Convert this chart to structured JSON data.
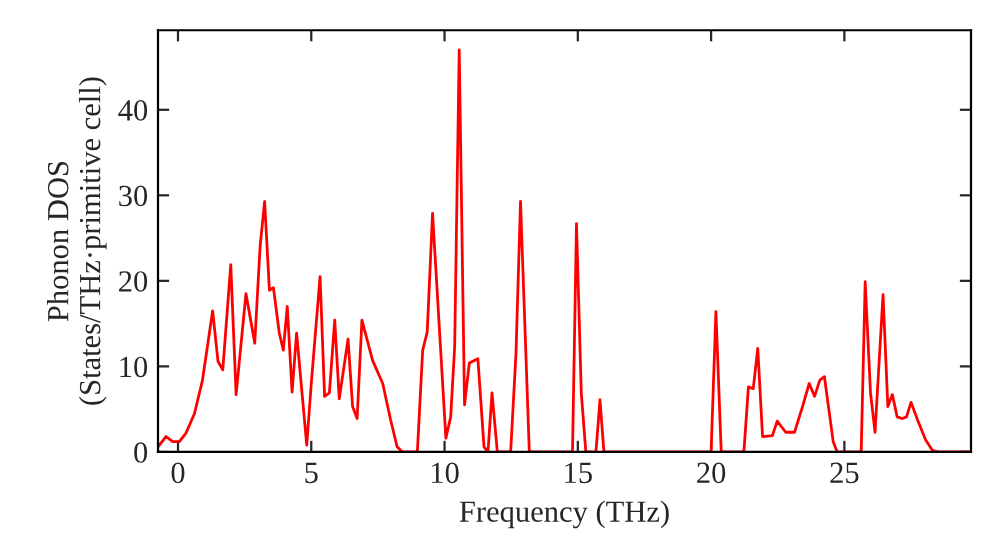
{
  "chart_data": {
    "type": "line",
    "xlabel": "Frequency (THz)",
    "ylabel": "Phonon DOS\n(States/THz·primitive cell)",
    "x": [
      -0.75,
      -0.45,
      -0.2,
      0.05,
      0.3,
      0.62,
      0.92,
      1.3,
      1.5,
      1.68,
      1.98,
      2.18,
      2.55,
      2.88,
      3.08,
      3.25,
      3.43,
      3.58,
      3.8,
      3.95,
      4.1,
      4.28,
      4.45,
      4.83,
      5.0,
      5.33,
      5.5,
      5.68,
      5.88,
      6.05,
      6.38,
      6.55,
      6.72,
      6.9,
      7.3,
      7.68,
      7.98,
      8.22,
      8.42,
      8.98,
      9.18,
      9.35,
      9.55,
      10.05,
      10.23,
      10.38,
      10.55,
      10.75,
      10.93,
      11.25,
      11.48,
      11.63,
      11.78,
      11.98,
      12.48,
      12.68,
      12.85,
      13.18,
      14.8,
      14.95,
      15.13,
      15.3,
      15.68,
      15.83,
      15.98,
      20.0,
      20.18,
      20.38,
      21.23,
      21.4,
      21.58,
      21.75,
      21.93,
      22.3,
      22.48,
      22.8,
      23.13,
      23.43,
      23.68,
      23.88,
      24.08,
      24.25,
      24.58,
      24.73,
      25.63,
      25.78,
      25.98,
      26.15,
      26.45,
      26.63,
      26.8,
      26.98,
      27.18,
      27.33,
      27.5,
      27.75,
      28.05,
      28.3,
      28.5,
      29.68
    ],
    "series": [
      {
        "color": "#ff0000",
        "values": [
          0.6,
          1.8,
          1.2,
          1.2,
          2.2,
          4.5,
          8.4,
          16.5,
          10.6,
          9.6,
          21.9,
          6.7,
          18.5,
          12.7,
          24,
          29.3,
          18.9,
          19.2,
          13.9,
          11.9,
          17,
          7,
          13.9,
          0.8,
          8,
          20.5,
          6.5,
          6.9,
          15.4,
          6.2,
          13.2,
          5.3,
          3.9,
          15.4,
          10.7,
          8,
          3.7,
          0.6,
          0,
          0,
          11.9,
          14,
          27.9,
          1.6,
          4.1,
          12.3,
          47,
          5.5,
          10.4,
          10.9,
          0.6,
          0,
          6.9,
          0,
          0,
          11.5,
          29.3,
          0,
          0,
          26.7,
          6.9,
          0,
          0,
          6.1,
          0,
          0,
          16.4,
          0,
          0,
          7.6,
          7.4,
          12.1,
          1.8,
          1.9,
          3.6,
          2.3,
          2.3,
          5.3,
          8,
          6.5,
          8.4,
          8.8,
          1.2,
          0,
          0,
          19.9,
          6.9,
          2.3,
          18.4,
          5.3,
          6.7,
          4.1,
          3.9,
          4.1,
          5.8,
          3.7,
          1.4,
          0.2,
          0,
          0
        ]
      }
    ],
    "xlim": [
      -0.75,
      29.75
    ],
    "ylim": [
      0,
      49.3
    ],
    "xticks": [
      0,
      5,
      10,
      15,
      20,
      25
    ],
    "yticks": [
      0,
      10,
      20,
      30,
      40
    ],
    "grid": false,
    "legend": false
  }
}
